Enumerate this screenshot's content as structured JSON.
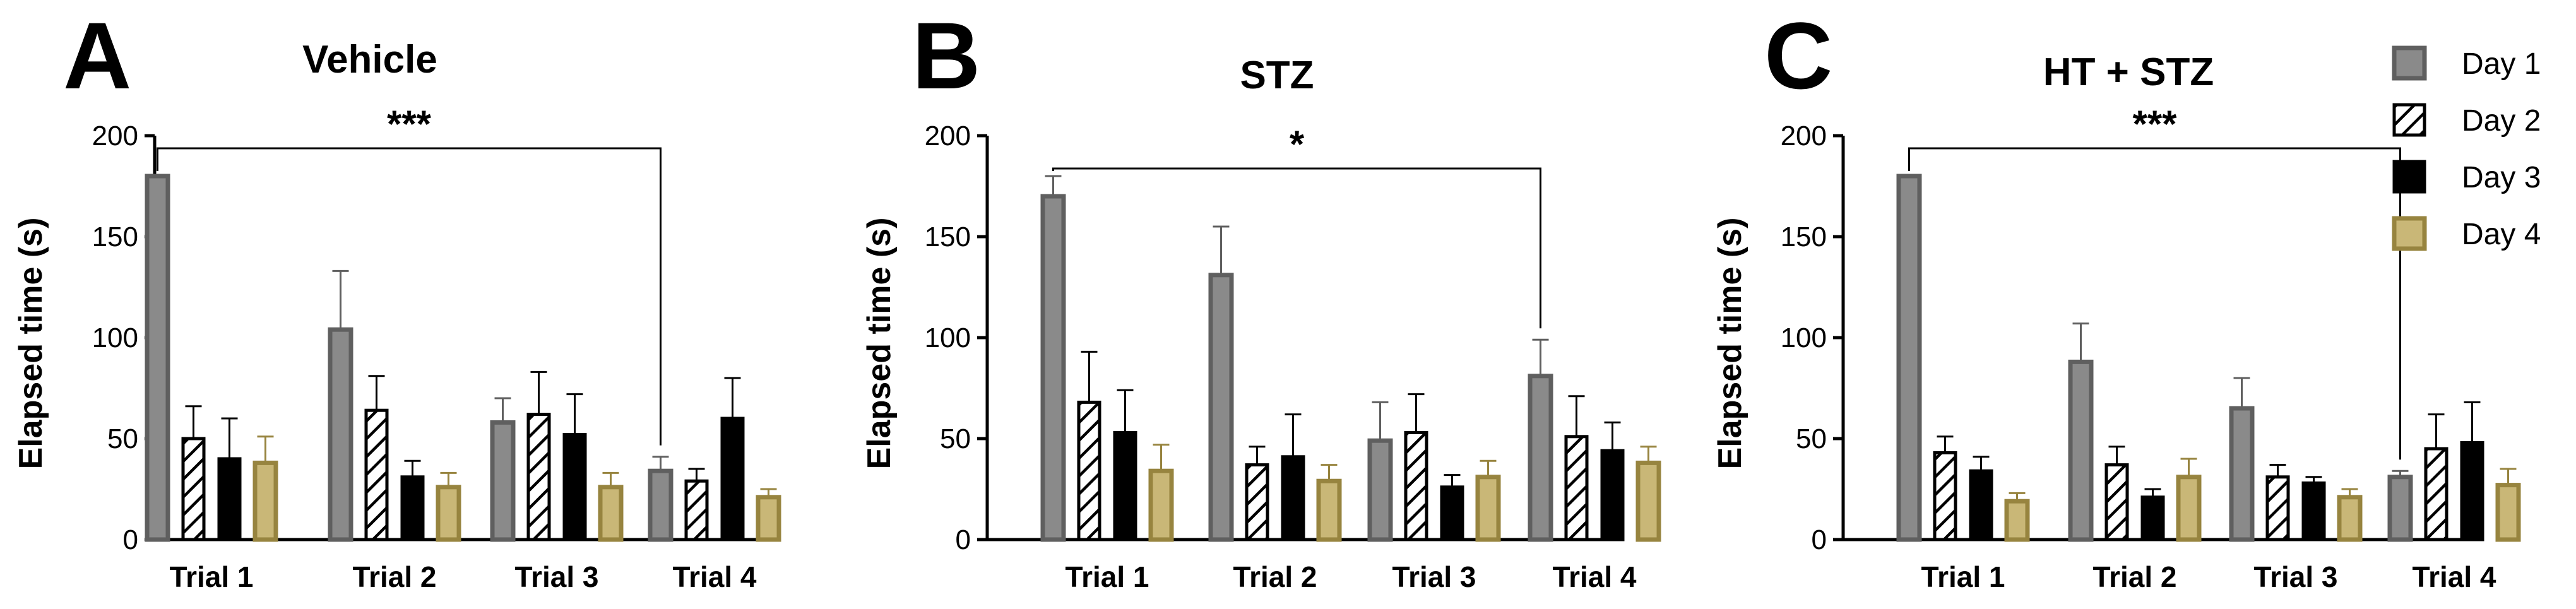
{
  "colors": {
    "day1_fill": "#8a8a8a",
    "day1_stroke": "#5f5f5f",
    "day2_fill": "#ffffff",
    "day2_stroke": "#000000",
    "day3_fill": "#000000",
    "day3_stroke": "#000000",
    "day4_fill": "#c9b777",
    "day4_stroke": "#97843f",
    "axis": "#000000"
  },
  "legend": {
    "entries": [
      "Day 1",
      "Day 2",
      "Day 3",
      "Day 4"
    ]
  },
  "chart_data": [
    {
      "type": "bar",
      "panel_letter": "A",
      "title": "Vehicle",
      "ylabel": "Elapsed time (s)",
      "xlabel": "",
      "ylim": [
        0,
        200
      ],
      "yticks": [
        "0",
        "50",
        "100",
        "150",
        "200"
      ],
      "categories": [
        "Trial 1",
        "Trial 2",
        "Trial 3",
        "Trial 4"
      ],
      "series": [
        {
          "name": "Day 1",
          "values": [
            180,
            104,
            58,
            34
          ],
          "errors": [
            0,
            29,
            12,
            7
          ]
        },
        {
          "name": "Day 2",
          "values": [
            50,
            64,
            62,
            29
          ],
          "errors": [
            16,
            17,
            21,
            6
          ]
        },
        {
          "name": "Day 3",
          "values": [
            40,
            31,
            52,
            60
          ],
          "errors": [
            20,
            8,
            20,
            20
          ]
        },
        {
          "name": "Day 4",
          "values": [
            38,
            26,
            26,
            21
          ],
          "errors": [
            13,
            7,
            7,
            4
          ]
        }
      ],
      "significance": {
        "label": "***",
        "from_category": 0,
        "to_category": 3,
        "at_value": 200
      }
    },
    {
      "type": "bar",
      "panel_letter": "B",
      "title": "STZ",
      "ylabel": "Elapsed time  (s)",
      "xlabel": "",
      "ylim": [
        0,
        200
      ],
      "yticks": [
        "0",
        "50",
        "100",
        "150",
        "200"
      ],
      "categories": [
        "Trial 1",
        "Trial 2",
        "Trial 3",
        "Trial 4"
      ],
      "series": [
        {
          "name": "Day 1",
          "values": [
            170,
            131,
            49,
            81
          ],
          "errors": [
            10,
            24,
            19,
            18
          ]
        },
        {
          "name": "Day 2",
          "values": [
            68,
            37,
            53,
            51
          ],
          "errors": [
            25,
            9,
            19,
            20
          ]
        },
        {
          "name": "Day 3",
          "values": [
            53,
            41,
            26,
            44
          ],
          "errors": [
            21,
            21,
            6,
            14
          ]
        },
        {
          "name": "Day 4",
          "values": [
            34,
            29,
            31,
            38
          ],
          "errors": [
            13,
            8,
            8,
            8
          ]
        }
      ],
      "significance": {
        "label": "*",
        "from_category": 0,
        "to_category": 3,
        "at_value": 190
      }
    },
    {
      "type": "bar",
      "panel_letter": "C",
      "title": "HT + STZ",
      "ylabel": "Elapsed time (s)",
      "xlabel": "",
      "ylim": [
        0,
        200
      ],
      "yticks": [
        "0",
        "50",
        "100",
        "150",
        "200"
      ],
      "categories": [
        "Trial 1",
        "Trial 2",
        "Trial 3",
        "Trial 4"
      ],
      "series": [
        {
          "name": "Day 1",
          "values": [
            180,
            88,
            65,
            31
          ],
          "errors": [
            0,
            19,
            15,
            3
          ]
        },
        {
          "name": "Day 2",
          "values": [
            43,
            37,
            31,
            45
          ],
          "errors": [
            8,
            9,
            6,
            17
          ]
        },
        {
          "name": "Day 3",
          "values": [
            34,
            21,
            28,
            48
          ],
          "errors": [
            7,
            4,
            3,
            20
          ]
        },
        {
          "name": "Day 4",
          "values": [
            19,
            31,
            21,
            27
          ],
          "errors": [
            4,
            9,
            4,
            8
          ]
        }
      ],
      "significance": {
        "label": "***",
        "from_category": 0,
        "to_category": 3,
        "at_value": 200
      }
    }
  ]
}
